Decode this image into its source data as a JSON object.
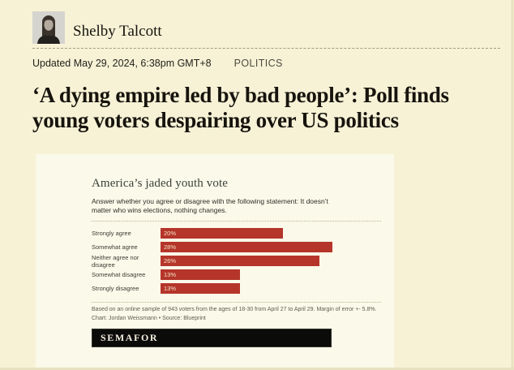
{
  "page": {
    "background_color": "#f7f2d6",
    "card_background_color": "#fbf9e9"
  },
  "byline": {
    "author": "Shelby Talcott"
  },
  "meta": {
    "updated": "Updated May 29, 2024, 6:38pm GMT+8",
    "category": "POLITICS"
  },
  "headline": {
    "text": "‘A dying empire led by bad people’: Poll finds young voters despairing over US politics"
  },
  "chart": {
    "title": "America’s jaded youth vote",
    "subtitle": "Answer whether you agree or disagree with the following statement: It doesn’t matter who wins elections, nothing changes.",
    "footnote": "Based on an online sample of 943 voters from the ages of 18-30 from April 27 to April 29. Margin of error +- 5.8%.",
    "credit": "Chart: Jordan Weissmann • Source: Blueprint",
    "logo": "SEMAFOR",
    "bar_color": "#b5352a",
    "value_label_color": "#f4e4c6"
  },
  "chart_data": {
    "type": "bar",
    "orientation": "horizontal",
    "title": "America’s jaded youth vote",
    "subtitle": "Answer whether you agree or disagree with the following statement: It doesn’t matter who wins elections, nothing changes.",
    "categories": [
      "Strongly agree",
      "Somewhat agree",
      "Neither agree nor disagree",
      "Somewhat disagree",
      "Strongly disagree"
    ],
    "values": [
      20,
      28,
      26,
      13,
      13
    ],
    "value_labels": [
      "20%",
      "28%",
      "26%",
      "13%",
      "13%"
    ],
    "xlabel": "",
    "ylabel": "",
    "xlim": [
      0,
      36
    ],
    "grid": false,
    "legend": false,
    "bar_color": "#b5352a"
  }
}
